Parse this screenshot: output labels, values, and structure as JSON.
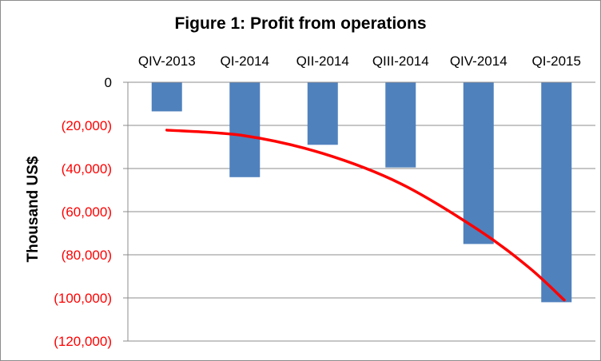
{
  "chart_data": {
    "type": "bar",
    "title": "Figure 1: Profit from operations",
    "xlabel": "",
    "ylabel": "Thousand  US$",
    "categories": [
      "QIV-2013",
      "QI-2014",
      "QII-2014",
      "QIII-2014",
      "QIV-2014",
      "QI-2015"
    ],
    "series": [
      {
        "values": [
          -13500,
          -44000,
          -29000,
          -39500,
          -75000,
          -102000
        ],
        "color": "#4f81bd"
      }
    ],
    "trendline": {
      "type": "polynomial",
      "color": "#ff0000",
      "points": [
        [
          0,
          -22200
        ],
        [
          1,
          -24800
        ],
        [
          2,
          -33000
        ],
        [
          3,
          -47000
        ],
        [
          4,
          -68500
        ],
        [
          4.65,
          -86000
        ],
        [
          5.1,
          -101000
        ]
      ]
    },
    "ylim": [
      -120000,
      0
    ],
    "y_ticks": [
      0,
      -20000,
      -40000,
      -60000,
      -80000,
      -100000,
      -120000
    ],
    "y_tick_labels": [
      "0",
      "(20,000)",
      "(40,000)",
      "(60,000)",
      "(80,000)",
      "(100,000)",
      "(120,000)"
    ],
    "y_tick_colors": [
      "#000000",
      "#ff0000",
      "#ff0000",
      "#ff0000",
      "#ff0000",
      "#ff0000",
      "#ff0000"
    ],
    "x_axis_position": "top",
    "grid": true,
    "legend": "none"
  }
}
